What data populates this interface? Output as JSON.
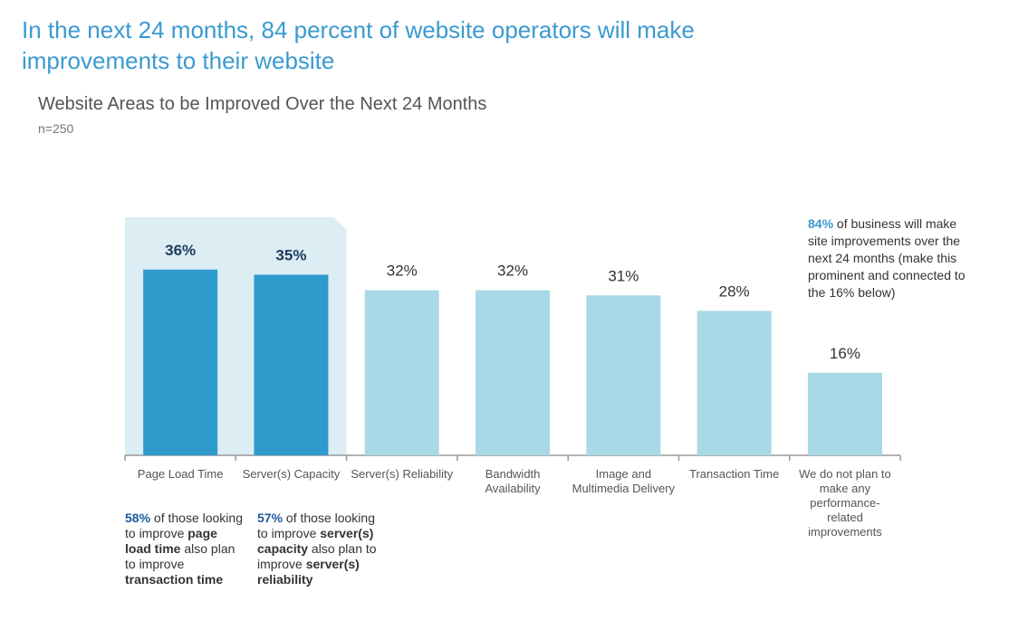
{
  "chart_data": {
    "type": "bar",
    "title": "In the next 24 months, 84 percent of website operators will make improvements to their website",
    "subtitle": "Website Areas to be Improved Over the Next 24 Months",
    "sample": "n=250",
    "categories": [
      "Page Load Time",
      "Server(s) Capacity",
      "Server(s) Reliability",
      "Bandwidth Availability",
      "Image and Multimedia Delivery",
      "Transaction Time",
      "We do not plan to make any performance-related improvements"
    ],
    "values": [
      36,
      35,
      32,
      32,
      31,
      28,
      16
    ],
    "value_labels": [
      "36%",
      "35%",
      "32%",
      "32%",
      "31%",
      "28%",
      "16%"
    ],
    "colors": [
      "#2f9bcc",
      "#2f9bcc",
      "#a9d9e6",
      "#a9d9e6",
      "#a9d9e6",
      "#a9d9e6",
      "#a9d9e6"
    ],
    "highlighted": [
      0,
      1
    ],
    "highlight_color": "#dcedf4",
    "annotations": [
      {
        "segments": [
          {
            "text": "58%",
            "bold": true,
            "color": "#1d5a9a"
          },
          {
            "text": " of those looking to improve "
          },
          {
            "text": "page load time",
            "bold": true
          },
          {
            "text": " also plan to improve "
          },
          {
            "text": "transaction time",
            "bold": true
          }
        ]
      },
      {
        "segments": [
          {
            "text": "57%",
            "bold": true,
            "color": "#1d5a9a"
          },
          {
            "text": " of those looking to improve "
          },
          {
            "text": "server(s) capacity",
            "bold": true
          },
          {
            "text": " also plan to improve "
          },
          {
            "text": "server(s) reliability",
            "bold": true
          }
        ]
      },
      {
        "segments": [
          {
            "text": "84%",
            "bold": true,
            "color": "#3a9ad0"
          },
          {
            "text": " of business will make site improvements over the next 24 months (make this prominent and connected to the 16% below)"
          }
        ]
      }
    ]
  }
}
